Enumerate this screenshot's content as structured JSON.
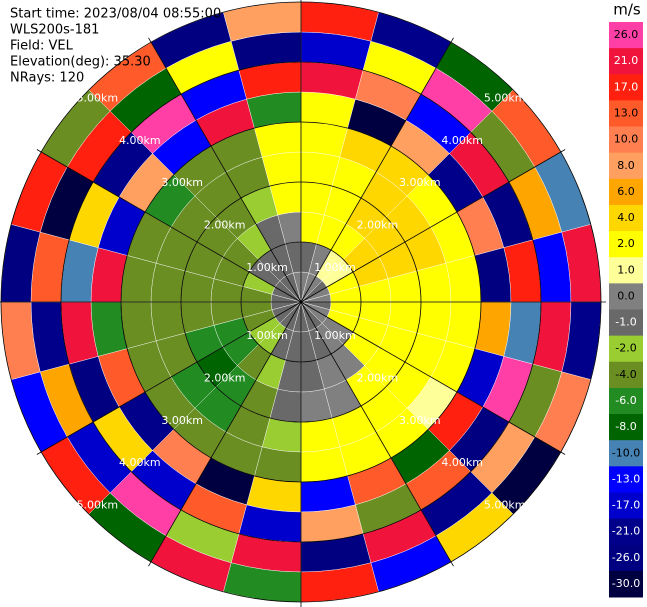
{
  "chart_data": {
    "type": "ppi",
    "header": [
      "Start time: 2023/08/04 08:55:00",
      "WLS200s-181",
      "Field: VEL",
      "Elevation(deg): 35.30",
      "NRays: 120"
    ],
    "unit": "m/s",
    "rlim": [
      0,
      5
    ],
    "rticks": [
      {
        "value": 1,
        "label": "1.00km"
      },
      {
        "value": 2,
        "label": "2.00km"
      },
      {
        "value": 3,
        "label": "3.00km"
      },
      {
        "value": 4,
        "label": "4.00km"
      },
      {
        "value": 5,
        "label": "5.00km"
      }
    ],
    "azimuth": [
      0,
      15,
      30,
      45,
      60,
      75,
      90,
      105,
      120,
      135,
      150,
      165,
      180,
      195,
      210,
      225,
      240,
      255,
      270,
      285,
      300,
      315,
      330,
      345,
      360
    ],
    "range": [
      0,
      0.5,
      1,
      1.5,
      2,
      2.5,
      3,
      3.5,
      4,
      4.5,
      5
    ],
    "values": [
      [
        0.5,
        -0.5,
        2.5,
        2.5,
        3,
        3,
        2.5,
        25,
        -15,
        18
      ],
      [
        0.5,
        0.5,
        2.5,
        3,
        3,
        5,
        -28,
        12,
        3,
        -20
      ],
      [
        0.5,
        1.5,
        3,
        5,
        5,
        5,
        9,
        -11,
        27,
        -7
      ],
      [
        -0.5,
        1.5,
        5,
        5,
        5,
        3,
        -18,
        22,
        -3,
        15
      ],
      [
        0.5,
        2.5,
        5,
        5,
        5,
        3,
        11,
        -26,
        6,
        -9
      ],
      [
        0.5,
        2.5,
        3,
        3,
        3,
        3,
        -24,
        18,
        -13,
        25
      ],
      [
        -0.5,
        2.5,
        3,
        3,
        3,
        3,
        7,
        -9,
        22,
        -18
      ],
      [
        0.5,
        2.5,
        3,
        3,
        2.5,
        2.5,
        -15,
        27,
        -4,
        12
      ],
      [
        0.5,
        0.5,
        2.5,
        2.5,
        2.5,
        1.5,
        20,
        -22,
        9,
        -28
      ],
      [
        -0.5,
        0.5,
        0.5,
        2.5,
        2.5,
        3,
        -7,
        14,
        -19,
        5
      ],
      [
        -0.5,
        -0.5,
        0.5,
        0.5,
        2.5,
        2.5,
        16,
        -3,
        24,
        -11
      ],
      [
        -0.5,
        -0.5,
        -0.5,
        0.5,
        2.5,
        2.5,
        -12,
        9,
        -25,
        19
      ],
      [
        -0.5,
        -0.5,
        -0.5,
        -0.5,
        -1.5,
        -3,
        4,
        -17,
        23,
        -6
      ],
      [
        -0.5,
        -0.5,
        -1.5,
        -3,
        -3,
        -3,
        -27,
        13,
        -2,
        21
      ],
      [
        -0.5,
        -1.5,
        -3,
        -5,
        -5,
        -3,
        10,
        -14,
        26,
        -8
      ],
      [
        -0.5,
        -1.5,
        -5,
        -7,
        -5,
        -3,
        -21,
        5,
        -16,
        18
      ],
      [
        -0.5,
        -3,
        -5,
        -5,
        -3,
        -3,
        15,
        -25,
        7,
        -12
      ],
      [
        -0.5,
        -3,
        -3,
        -3,
        -3,
        -3,
        -5,
        22,
        -19,
        11
      ],
      [
        -0.5,
        -3,
        -3,
        -3,
        -3,
        -3,
        25,
        -9,
        14,
        -23
      ],
      [
        -0.5,
        -1.5,
        -3,
        -3,
        -3,
        -3,
        -15,
        4,
        -28,
        17
      ],
      [
        -0.5,
        -0.5,
        -3,
        -3,
        -3,
        -5,
        8,
        -20,
        19,
        -4
      ],
      [
        -0.5,
        -0.5,
        -1.5,
        -3,
        -3,
        -3,
        -11,
        26,
        -7,
        13
      ],
      [
        -0.5,
        -0.5,
        -0.5,
        -1.5,
        -3,
        -3,
        21,
        -13,
        3,
        -26
      ],
      [
        0.5,
        -0.5,
        0.5,
        2.5,
        2.5,
        3,
        -6,
        17,
        -22,
        9
      ]
    ],
    "levels": [
      {
        "value": 26,
        "label": "26.0"
      },
      {
        "value": 21,
        "label": "21.0"
      },
      {
        "value": 17,
        "label": "17.0"
      },
      {
        "value": 13,
        "label": "13.0"
      },
      {
        "value": 10,
        "label": "10.0"
      },
      {
        "value": 8,
        "label": "8.0"
      },
      {
        "value": 6,
        "label": "6.0"
      },
      {
        "value": 4,
        "label": "4.0"
      },
      {
        "value": 2,
        "label": "2.0"
      },
      {
        "value": 1,
        "label": "1.0"
      },
      {
        "value": 0,
        "label": "0.0"
      },
      {
        "value": -1,
        "label": "-1.0"
      },
      {
        "value": -2,
        "label": "-2.0"
      },
      {
        "value": -4,
        "label": "-4.0"
      },
      {
        "value": -6,
        "label": "-6.0"
      },
      {
        "value": -8,
        "label": "-8.0"
      },
      {
        "value": -10,
        "label": "-10.0"
      },
      {
        "value": -13,
        "label": "-13.0"
      },
      {
        "value": -17,
        "label": "-17.0"
      },
      {
        "value": -21,
        "label": "-21.0"
      },
      {
        "value": -26,
        "label": "-26.0"
      },
      {
        "value": -30,
        "label": "-30.0"
      }
    ],
    "colors": [
      "#ff3fa6",
      "#f0143c",
      "#ff2010",
      "#ff5a2a",
      "#ff7f50",
      "#ffa060",
      "#ffa500",
      "#ffd700",
      "#ffff00",
      "#ffff99",
      "#808080",
      "#696969",
      "#9acd32",
      "#6b8e23",
      "#228b22",
      "#006400",
      "#4682b4",
      "#0000ff",
      "#0000cd",
      "#00008b",
      "#000080",
      "#000040"
    ]
  }
}
